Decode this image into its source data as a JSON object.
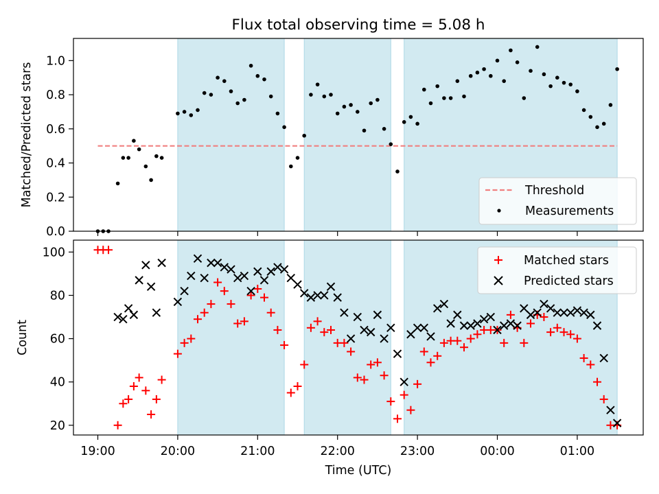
{
  "title": "Flux total observing time = 5.08 h",
  "x_axis": {
    "label": "Time (UTC)",
    "ticks": [
      {
        "t": 0,
        "label": "19:00"
      },
      {
        "t": 60,
        "label": "20:00"
      },
      {
        "t": 120,
        "label": "21:00"
      },
      {
        "t": 180,
        "label": "22:00"
      },
      {
        "t": 240,
        "label": "23:00"
      },
      {
        "t": 300,
        "label": "00:00"
      },
      {
        "t": 360,
        "label": "01:00"
      }
    ]
  },
  "colors": {
    "threshold": "#f08080",
    "measurements": "#000000",
    "matched": "#ff0000",
    "predicted": "#000000",
    "span_fill": "#add8e6"
  },
  "chart_data": [
    {
      "type": "scatter",
      "title": "Flux total observing time = 5.08 h",
      "xlabel": "",
      "ylabel": "Matched/Predicted stars",
      "xlim": [
        "18:41",
        "01:48"
      ],
      "ylim": [
        0.0,
        1.13
      ],
      "yticks": [
        0.0,
        0.2,
        0.4,
        0.6,
        0.8,
        1.0
      ],
      "ytick_labels": [
        "0.0",
        "0.2",
        "0.4",
        "0.6",
        "0.8",
        "1.0"
      ],
      "legend": {
        "position": "lower right",
        "entries": [
          "Threshold",
          "Measurements"
        ]
      },
      "shaded_intervals": [
        [
          "20:00",
          "21:20"
        ],
        [
          "21:35",
          "22:40"
        ],
        [
          "22:50",
          "01:30"
        ]
      ],
      "series": [
        {
          "name": "Threshold",
          "kind": "line",
          "x": [
            "19:00",
            "01:30"
          ],
          "y": [
            0.5,
            0.5
          ]
        },
        {
          "name": "Measurements",
          "kind": "scatter",
          "x": [
            "19:00",
            "19:04",
            "19:08",
            "19:15",
            "19:19",
            "19:23",
            "19:27",
            "19:31",
            "19:36",
            "19:40",
            "19:44",
            "19:48",
            "20:00",
            "20:05",
            "20:10",
            "20:15",
            "20:20",
            "20:25",
            "20:30",
            "20:35",
            "20:40",
            "20:45",
            "20:50",
            "20:55",
            "21:00",
            "21:05",
            "21:10",
            "21:15",
            "21:20",
            "21:25",
            "21:30",
            "21:35",
            "21:40",
            "21:45",
            "21:50",
            "21:55",
            "22:00",
            "22:05",
            "22:10",
            "22:15",
            "22:20",
            "22:25",
            "22:30",
            "22:35",
            "22:40",
            "22:45",
            "22:50",
            "22:55",
            "23:00",
            "23:05",
            "23:10",
            "23:15",
            "23:20",
            "23:25",
            "23:30",
            "23:35",
            "23:40",
            "23:45",
            "23:50",
            "23:55",
            "00:00",
            "00:05",
            "00:10",
            "00:15",
            "00:20",
            "00:25",
            "00:30",
            "00:35",
            "00:40",
            "00:45",
            "00:50",
            "00:55",
            "01:00",
            "01:05",
            "01:10",
            "01:15",
            "01:20",
            "01:25",
            "01:30"
          ],
          "y": [
            0.0,
            0.0,
            0.0,
            0.28,
            0.43,
            0.43,
            0.53,
            0.48,
            0.38,
            0.3,
            0.44,
            0.43,
            0.69,
            0.7,
            0.68,
            0.71,
            0.81,
            0.8,
            0.9,
            0.88,
            0.82,
            0.75,
            0.77,
            0.97,
            0.91,
            0.89,
            0.79,
            0.69,
            0.61,
            0.38,
            0.43,
            0.56,
            0.8,
            0.86,
            0.79,
            0.8,
            0.69,
            0.73,
            0.74,
            0.7,
            0.59,
            0.75,
            0.77,
            0.6,
            0.51,
            0.35,
            0.64,
            0.67,
            0.63,
            0.83,
            0.75,
            0.85,
            0.78,
            0.78,
            0.88,
            0.79,
            0.91,
            0.93,
            0.95,
            0.91,
            1.0,
            0.88,
            1.06,
            0.99,
            0.78,
            0.94,
            1.08,
            0.92,
            0.85,
            0.9,
            0.87,
            0.86,
            0.82,
            0.71,
            0.67,
            0.61,
            0.63,
            0.74,
            0.95
          ]
        }
      ]
    },
    {
      "type": "scatter",
      "xlabel": "Time (UTC)",
      "ylabel": "Count",
      "xlim": [
        "18:41",
        "01:48"
      ],
      "ylim": [
        15.5,
        105.5
      ],
      "yticks": [
        20,
        40,
        60,
        80,
        100
      ],
      "ytick_labels": [
        "20",
        "40",
        "60",
        "80",
        "100"
      ],
      "legend": {
        "position": "upper right",
        "entries": [
          "Matched stars",
          "Predicted stars"
        ]
      },
      "shaded_intervals": [
        [
          "20:00",
          "21:20"
        ],
        [
          "21:35",
          "22:40"
        ],
        [
          "22:50",
          "01:30"
        ]
      ],
      "series": [
        {
          "name": "Matched stars",
          "marker": "+",
          "x": [
            "19:00",
            "19:04",
            "19:08",
            "19:15",
            "19:19",
            "19:23",
            "19:27",
            "19:31",
            "19:36",
            "19:40",
            "19:44",
            "19:48",
            "20:00",
            "20:05",
            "20:10",
            "20:15",
            "20:20",
            "20:25",
            "20:30",
            "20:35",
            "20:40",
            "20:45",
            "20:50",
            "20:55",
            "21:00",
            "21:05",
            "21:10",
            "21:15",
            "21:20",
            "21:25",
            "21:30",
            "21:35",
            "21:40",
            "21:45",
            "21:50",
            "21:55",
            "22:00",
            "22:05",
            "22:10",
            "22:15",
            "22:20",
            "22:25",
            "22:30",
            "22:35",
            "22:40",
            "22:45",
            "22:50",
            "22:55",
            "23:00",
            "23:05",
            "23:10",
            "23:15",
            "23:20",
            "23:25",
            "23:30",
            "23:35",
            "23:40",
            "23:45",
            "23:50",
            "23:55",
            "00:00",
            "00:05",
            "00:10",
            "00:15",
            "00:20",
            "00:25",
            "00:30",
            "00:35",
            "00:40",
            "00:45",
            "00:50",
            "00:55",
            "01:00",
            "01:05",
            "01:10",
            "01:15",
            "01:20",
            "01:25",
            "01:30"
          ],
          "y": [
            101,
            101,
            101,
            20,
            30,
            32,
            38,
            42,
            36,
            25,
            32,
            41,
            53,
            58,
            60,
            69,
            72,
            76,
            86,
            82,
            76,
            67,
            68,
            80,
            83,
            79,
            72,
            64,
            57,
            35,
            38,
            48,
            65,
            68,
            63,
            64,
            58,
            58,
            54,
            42,
            41,
            48,
            49,
            43,
            31,
            23,
            34,
            27,
            39,
            54,
            49,
            52,
            58,
            59,
            59,
            56,
            60,
            62,
            64,
            64,
            64,
            58,
            71,
            65,
            58,
            67,
            71,
            70,
            63,
            65,
            63,
            62,
            60,
            51,
            48,
            40,
            32,
            20,
            20
          ]
        },
        {
          "name": "Predicted stars",
          "marker": "x",
          "x": [
            "19:15",
            "19:19",
            "19:23",
            "19:27",
            "19:31",
            "19:36",
            "19:40",
            "19:44",
            "19:48",
            "20:00",
            "20:05",
            "20:10",
            "20:15",
            "20:20",
            "20:25",
            "20:30",
            "20:35",
            "20:40",
            "20:45",
            "20:50",
            "20:55",
            "21:00",
            "21:05",
            "21:10",
            "21:15",
            "21:20",
            "21:25",
            "21:30",
            "21:35",
            "21:40",
            "21:45",
            "21:50",
            "21:55",
            "22:00",
            "22:05",
            "22:10",
            "22:15",
            "22:20",
            "22:25",
            "22:30",
            "22:35",
            "22:40",
            "22:45",
            "22:50",
            "22:55",
            "23:00",
            "23:05",
            "23:10",
            "23:15",
            "23:20",
            "23:25",
            "23:30",
            "23:35",
            "23:40",
            "23:45",
            "23:50",
            "23:55",
            "00:00",
            "00:05",
            "00:10",
            "00:15",
            "00:20",
            "00:25",
            "00:30",
            "00:35",
            "00:40",
            "00:45",
            "00:50",
            "00:55",
            "01:00",
            "01:05",
            "01:10",
            "01:15",
            "01:20",
            "01:25",
            "01:30"
          ],
          "y": [
            70,
            69,
            74,
            71,
            87,
            94,
            84,
            72,
            95,
            77,
            82,
            89,
            97,
            88,
            95,
            95,
            93,
            92,
            88,
            89,
            82,
            91,
            87,
            91,
            93,
            92,
            88,
            85,
            81,
            79,
            80,
            80,
            84,
            79,
            72,
            60,
            70,
            64,
            63,
            71,
            60,
            65,
            53,
            40,
            62,
            65,
            65,
            61,
            74,
            76,
            67,
            71,
            66,
            66,
            67,
            69,
            70,
            64,
            66,
            67,
            66,
            74,
            71,
            72,
            76,
            74,
            72,
            72,
            72,
            73,
            72,
            71,
            66,
            51,
            27,
            21
          ]
        }
      ]
    }
  ]
}
